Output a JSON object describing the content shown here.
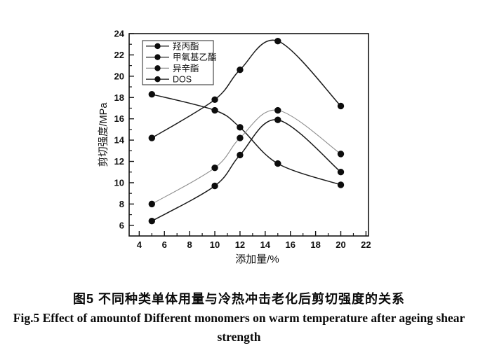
{
  "figure": {
    "caption_zh": "图5 不同种类单体用量与冷热冲击老化后剪切强度的关系",
    "caption_en_line1": "Fig.5 Effect of amountof Different monomers on warm temperature after ageing shear",
    "caption_en_line2": "strength"
  },
  "chart_data": {
    "type": "line",
    "title": "",
    "xlabel": "添加量/%",
    "ylabel": "剪切强度/MPa",
    "x": [
      5,
      10,
      12,
      15,
      20
    ],
    "series": [
      {
        "name": "羟丙酯",
        "values": [
          14.2,
          17.8,
          20.6,
          23.3,
          17.2
        ],
        "color": "#1a1a1a",
        "line_width": 1.5,
        "marker": "filled-circle"
      },
      {
        "name": "甲氧基乙酯",
        "values": [
          18.3,
          16.8,
          15.2,
          11.8,
          9.8
        ],
        "color": "#1a1a1a",
        "line_width": 1.5,
        "marker": "filled-circle"
      },
      {
        "name": "异辛酯",
        "values": [
          8.0,
          11.4,
          14.2,
          16.8,
          12.7
        ],
        "color": "#8d8d8d",
        "line_width": 1.1,
        "marker": "filled-circle"
      },
      {
        "name": "DOS",
        "values": [
          6.4,
          9.7,
          12.6,
          15.9,
          11.0
        ],
        "color": "#1a1a1a",
        "line_width": 1.5,
        "marker": "filled-circle"
      }
    ],
    "xlim": [
      3.2,
      22.2
    ],
    "ylim": [
      5,
      24
    ],
    "x_ticks": [
      4,
      6,
      8,
      10,
      12,
      14,
      16,
      18,
      20,
      22
    ],
    "y_ticks": [
      6,
      8,
      10,
      12,
      14,
      16,
      18,
      20,
      22,
      24
    ],
    "x_minor_ticks": [
      5,
      7,
      9,
      11,
      13,
      15,
      17,
      19,
      21
    ],
    "y_minor_ticks": [
      7,
      9,
      11,
      13,
      15,
      17,
      19,
      21,
      23
    ],
    "grid": false,
    "legend_position": "upper-left",
    "marker_color": "#0d0d0d",
    "axis_color": "#141414"
  }
}
